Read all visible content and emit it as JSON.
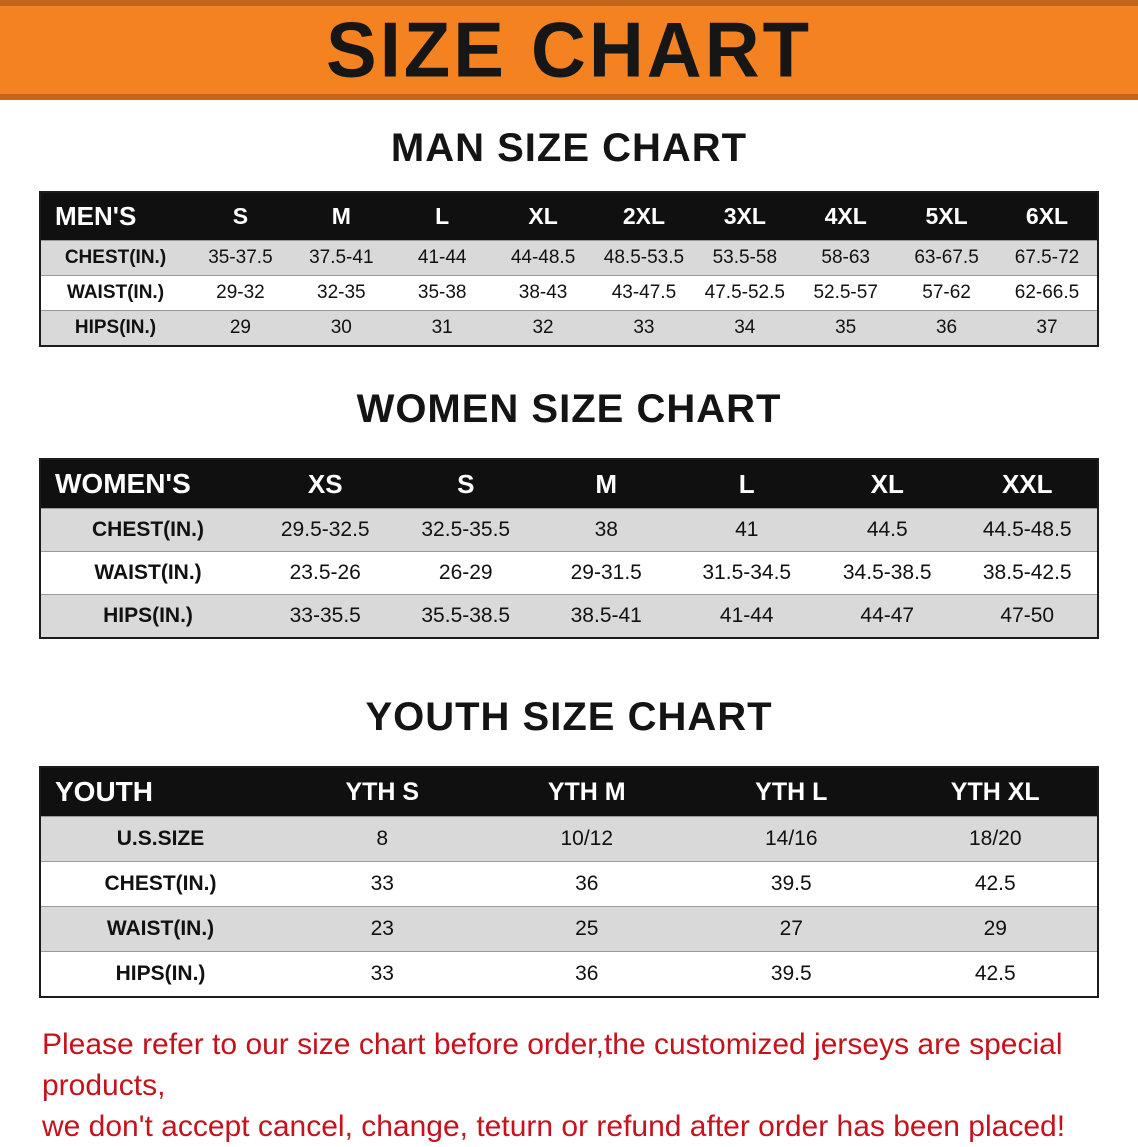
{
  "banner": {
    "title": "SIZE CHART",
    "bg_color": "#f58220",
    "edge_color": "#c4661a",
    "text_color": "#161616"
  },
  "sections": [
    {
      "heading": "MAN SIZE CHART",
      "table": {
        "header": [
          "MEN'S",
          "S",
          "M",
          "L",
          "XL",
          "2XL",
          "3XL",
          "4XL",
          "5XL",
          "6XL"
        ],
        "rows": [
          [
            "CHEST(IN.)",
            "35-37.5",
            "37.5-41",
            "41-44",
            "44-48.5",
            "48.5-53.5",
            "53.5-58",
            "58-63",
            "63-67.5",
            "67.5-72"
          ],
          [
            "WAIST(IN.)",
            "29-32",
            "32-35",
            "35-38",
            "38-43",
            "43-47.5",
            "47.5-52.5",
            "52.5-57",
            "57-62",
            "62-66.5"
          ],
          [
            "HIPS(IN.)",
            "29",
            "30",
            "31",
            "32",
            "33",
            "34",
            "35",
            "36",
            "37"
          ]
        ]
      }
    },
    {
      "heading": "WOMEN SIZE CHART",
      "table": {
        "header": [
          "WOMEN'S",
          "XS",
          "S",
          "M",
          "L",
          "XL",
          "XXL"
        ],
        "rows": [
          [
            "CHEST(IN.)",
            "29.5-32.5",
            "32.5-35.5",
            "38",
            "41",
            "44.5",
            "44.5-48.5"
          ],
          [
            "WAIST(IN.)",
            "23.5-26",
            "26-29",
            "29-31.5",
            "31.5-34.5",
            "34.5-38.5",
            "38.5-42.5"
          ],
          [
            "HIPS(IN.)",
            "33-35.5",
            "35.5-38.5",
            "38.5-41",
            "41-44",
            "44-47",
            "47-50"
          ]
        ]
      }
    },
    {
      "heading": "YOUTH SIZE CHART",
      "table": {
        "header": [
          "YOUTH",
          "YTH S",
          "YTH M",
          "YTH L",
          "YTH XL"
        ],
        "rows": [
          [
            "U.S.SIZE",
            "8",
            "10/12",
            "14/16",
            "18/20"
          ],
          [
            "CHEST(IN.)",
            "33",
            "36",
            "39.5",
            "42.5"
          ],
          [
            "WAIST(IN.)",
            "23",
            "25",
            "27",
            "29"
          ],
          [
            "HIPS(IN.)",
            "33",
            "36",
            "39.5",
            "42.5"
          ]
        ]
      }
    }
  ],
  "notice": {
    "text_color": "#c5121c",
    "lines": [
      "Please refer to our size chart before order,the customized jerseys are special products,",
      "we don't accept cancel, change, teturn or refund after order has been placed!"
    ]
  }
}
